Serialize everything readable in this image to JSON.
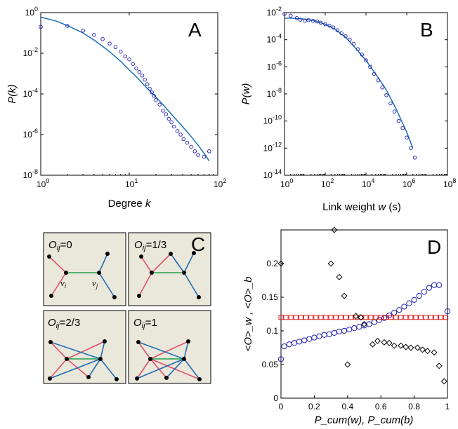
{
  "chart_data": [
    {
      "panel": "A",
      "type": "scatter",
      "scale": "log-log",
      "xlabel": "Degree k",
      "xlabel_parts": {
        "prefix": "Degree ",
        "var": "k"
      },
      "ylabel": "P(k)",
      "xlim": [
        1,
        100
      ],
      "ylim": [
        1e-08,
        1
      ],
      "x_ticks": [
        "10^0",
        "10^1",
        "10^2"
      ],
      "y_ticks": [
        "10^-8",
        "10^-6",
        "10^-4",
        "10^-2",
        "10^0"
      ],
      "series": [
        {
          "kind": "markers",
          "marker": "circle",
          "color": "#1f1fb4",
          "x": [
            1,
            2,
            3,
            4,
            5,
            6,
            7,
            8,
            9,
            10,
            11,
            12,
            13,
            14,
            15,
            16,
            17,
            18,
            19,
            20,
            22,
            24,
            26,
            28,
            30,
            32,
            35,
            38,
            41,
            45,
            50,
            55,
            60,
            70,
            80
          ],
          "y": [
            0.2,
            0.22,
            0.13,
            0.08,
            0.05,
            0.03,
            0.02,
            0.012,
            0.007,
            0.005,
            0.003,
            0.0018,
            0.0012,
            0.0008,
            0.0005,
            0.0003,
            0.00018,
            0.00012,
            8e-05,
            5e-05,
            3e-05,
            1.5e-05,
            1e-05,
            6e-06,
            4e-06,
            2.5e-06,
            1.5e-06,
            1e-06,
            6e-07,
            4e-07,
            2.5e-07,
            1.5e-07,
            1e-07,
            8e-08,
            1.5e-07
          ]
        },
        {
          "kind": "line",
          "color": "#1a6fb5",
          "x": [
            1,
            1.5,
            2,
            3,
            4,
            5,
            6,
            8,
            10,
            12,
            15,
            20,
            25,
            30,
            40,
            50,
            60,
            70,
            80
          ],
          "y": [
            0.6,
            0.38,
            0.23,
            0.1,
            0.045,
            0.022,
            0.012,
            0.004,
            0.0015,
            0.0007,
            0.00025,
            7e-05,
            2.5e-05,
            1e-05,
            2.5e-06,
            8e-07,
            3e-07,
            1.2e-07,
            5e-08
          ]
        }
      ]
    },
    {
      "panel": "B",
      "type": "scatter",
      "scale": "log-log",
      "xlabel": "Link weight w (s)",
      "xlabel_parts": {
        "prefix": "Link weight ",
        "var": "w",
        "suffix": " (s)"
      },
      "ylabel": "P(w)",
      "xlim": [
        1,
        100000000
      ],
      "ylim": [
        1e-14,
        0.01
      ],
      "x_ticks": [
        "10^0",
        "10^2",
        "10^4",
        "10^6",
        "10^8"
      ],
      "y_ticks": [
        "10^-14",
        "10^-12",
        "10^-10",
        "10^-8",
        "10^-6",
        "10^-4",
        "10^-2"
      ],
      "series": [
        {
          "kind": "markers",
          "marker": "circle",
          "color": "#1f1fb4",
          "x": [
            1,
            2,
            4,
            6,
            10,
            15,
            25,
            40,
            60,
            100,
            160,
            250,
            400,
            630,
            1000,
            1600,
            2500,
            4000,
            6300,
            10000,
            16000,
            25000,
            40000,
            63000,
            100000,
            160000,
            250000,
            400000,
            630000,
            1000000,
            1600000,
            2500000
          ],
          "y": [
            0.008,
            0.006,
            0.004,
            0.003,
            0.0025,
            0.0028,
            0.0025,
            0.0022,
            0.0018,
            0.0014,
            0.0011,
            0.0008,
            0.0005,
            0.0003,
            0.00018,
            0.0001,
            5e-05,
            2e-05,
            8e-06,
            3e-06,
            1e-06,
            3e-07,
            1e-07,
            3e-08,
            8e-09,
            2e-09,
            5e-10,
            1e-10,
            3e-11,
            6e-12,
            1e-12,
            2e-13
          ]
        },
        {
          "kind": "line",
          "color": "#1a6fb5",
          "x": [
            1,
            3,
            10,
            30,
            100,
            300,
            1000,
            3000,
            10000,
            30000,
            100000,
            300000,
            1000000,
            2000000
          ],
          "y": [
            0.004,
            0.0038,
            0.0033,
            0.0025,
            0.0014,
            0.0006,
            0.00015,
            2.5e-05,
            3e-06,
            3e-07,
            2e-08,
            8e-10,
            1.5e-11,
            1e-12
          ]
        }
      ]
    },
    {
      "panel": "D",
      "type": "scatter",
      "xlabel": "P_cum(w), P_cum(b)",
      "ylabel": "<O>_w , <O>_b",
      "xlim": [
        0,
        1
      ],
      "ylim": [
        0,
        0.25
      ],
      "x_ticks": [
        "0",
        "0.2",
        "0.4",
        "0.6",
        "0.8",
        "1"
      ],
      "y_ticks": [
        "0",
        "0.05",
        "0.1",
        "0.15",
        "0.2"
      ],
      "series": [
        {
          "kind": "markers",
          "marker": "circle",
          "color": "#1f1fb4",
          "x": [
            0.0,
            0.02,
            0.05,
            0.08,
            0.11,
            0.14,
            0.17,
            0.2,
            0.23,
            0.26,
            0.29,
            0.32,
            0.35,
            0.38,
            0.41,
            0.44,
            0.47,
            0.5,
            0.53,
            0.56,
            0.59,
            0.62,
            0.65,
            0.68,
            0.71,
            0.74,
            0.77,
            0.8,
            0.83,
            0.86,
            0.89,
            0.92,
            0.95,
            1.0
          ],
          "y": [
            0.058,
            0.077,
            0.08,
            0.082,
            0.084,
            0.086,
            0.088,
            0.09,
            0.092,
            0.094,
            0.095,
            0.097,
            0.099,
            0.1,
            0.102,
            0.104,
            0.106,
            0.108,
            0.11,
            0.113,
            0.116,
            0.119,
            0.123,
            0.127,
            0.131,
            0.136,
            0.141,
            0.146,
            0.152,
            0.158,
            0.164,
            0.168,
            0.168,
            0.129
          ]
        },
        {
          "kind": "markers",
          "marker": "square",
          "color": "#d42020",
          "x": [
            0.0,
            0.03,
            0.06,
            0.09,
            0.12,
            0.15,
            0.18,
            0.21,
            0.24,
            0.27,
            0.3,
            0.33,
            0.36,
            0.39,
            0.42,
            0.45,
            0.48,
            0.51,
            0.54,
            0.57,
            0.6,
            0.63,
            0.66,
            0.69,
            0.72,
            0.75,
            0.78,
            0.81,
            0.84,
            0.87,
            0.9,
            0.93,
            0.96,
            0.99
          ],
          "y": [
            0.12,
            0.12,
            0.12,
            0.12,
            0.12,
            0.12,
            0.12,
            0.12,
            0.12,
            0.12,
            0.12,
            0.12,
            0.12,
            0.12,
            0.12,
            0.12,
            0.12,
            0.12,
            0.12,
            0.12,
            0.12,
            0.12,
            0.12,
            0.12,
            0.12,
            0.12,
            0.12,
            0.12,
            0.12,
            0.12,
            0.12,
            0.12,
            0.12,
            0.12
          ]
        },
        {
          "kind": "markers",
          "marker": "diamond",
          "color": "#000000",
          "x": [
            0.0,
            0.3,
            0.32,
            0.35,
            0.38,
            0.4,
            0.45,
            0.48,
            0.5,
            0.55,
            0.58,
            0.62,
            0.65,
            0.68,
            0.72,
            0.75,
            0.78,
            0.82,
            0.85,
            0.88,
            0.92,
            0.95,
            0.98
          ],
          "y": [
            0.2,
            0.2,
            0.25,
            0.18,
            0.152,
            0.05,
            0.122,
            0.12,
            0.11,
            0.08,
            0.085,
            0.083,
            0.082,
            0.078,
            0.078,
            0.076,
            0.075,
            0.075,
            0.072,
            0.07,
            0.068,
            0.048,
            0.025
          ]
        }
      ]
    }
  ],
  "panel_letters": {
    "a": "A",
    "b": "B",
    "c": "C",
    "d": "D"
  },
  "diagrams": {
    "bg_color": "#eae8db",
    "colors": {
      "red": "#e0506a",
      "blue": "#1f6cb2",
      "green": "#22a04a"
    },
    "boxes": [
      {
        "o_prefix": "O",
        "o_sub": "ij",
        "o_value": "=0",
        "vi": "v",
        "vi_sub": "i",
        "vj": "v",
        "vj_sub": "j"
      },
      {
        "o_prefix": "O",
        "o_sub": "ij",
        "o_value": "=1/3"
      },
      {
        "o_prefix": "O",
        "o_sub": "ij",
        "o_value": "=2/3"
      },
      {
        "o_prefix": "O",
        "o_sub": "ij",
        "o_value": "=1"
      }
    ]
  }
}
